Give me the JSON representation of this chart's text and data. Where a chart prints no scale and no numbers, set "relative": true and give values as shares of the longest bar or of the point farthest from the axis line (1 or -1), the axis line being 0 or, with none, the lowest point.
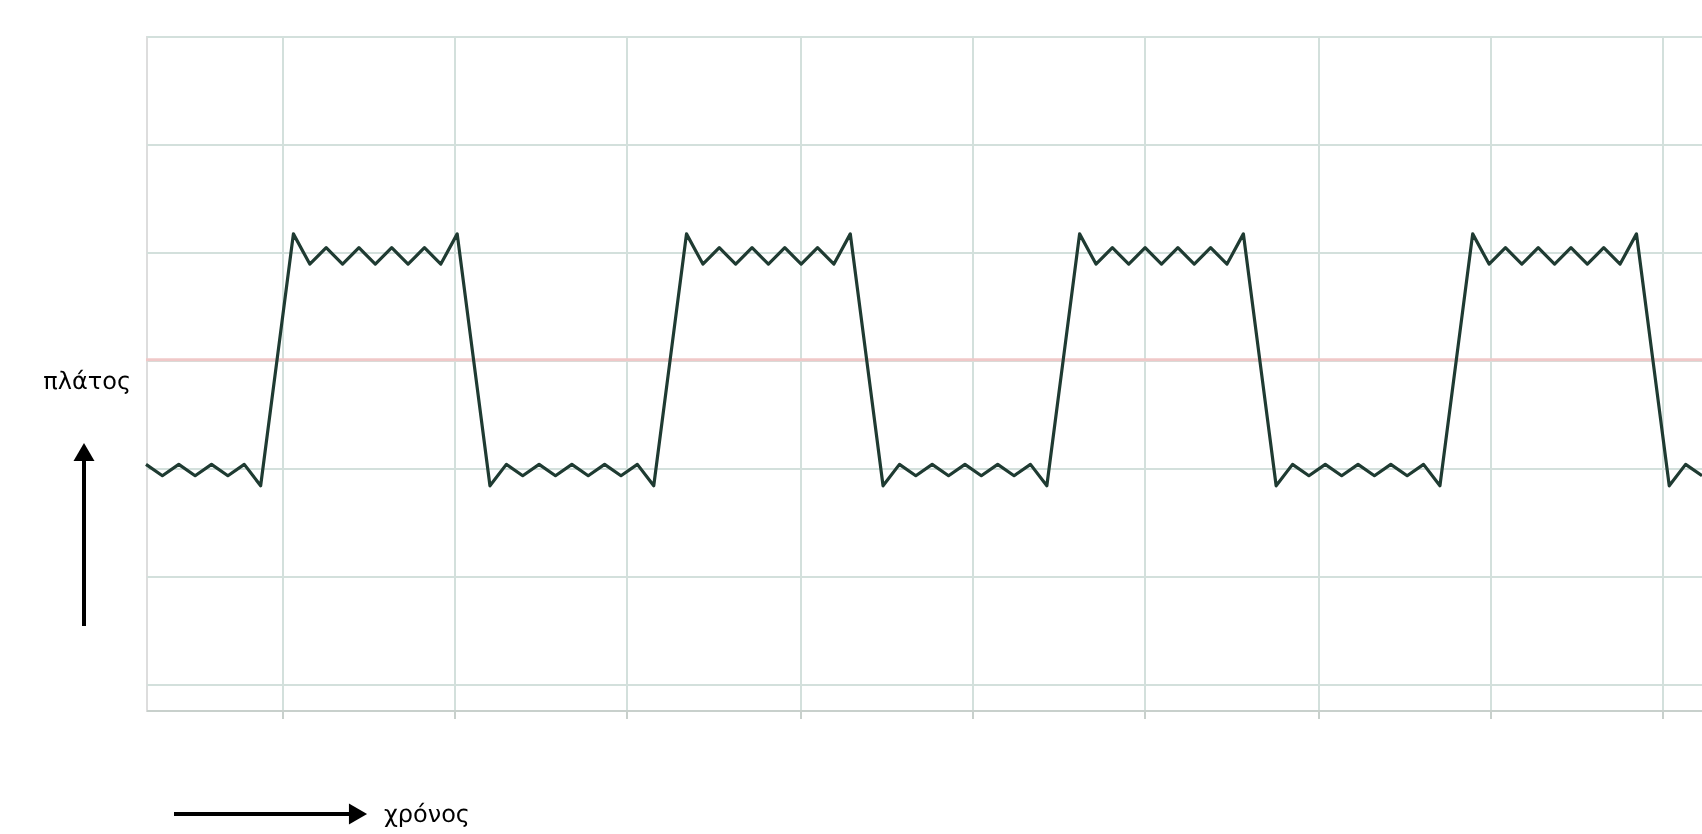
{
  "chart_data": {
    "type": "line",
    "relative": true,
    "annotations": [
      "χρόνος"
    ],
    "ylabel": "πλάτος",
    "categories": [
      null,
      null,
      null,
      null,
      null,
      null,
      null,
      null,
      null,
      null,
      null,
      null,
      null,
      null,
      null,
      null,
      null,
      null,
      null,
      null,
      null,
      null,
      null,
      null,
      null,
      null,
      null,
      null,
      null,
      null,
      null,
      null,
      null,
      null,
      null,
      null,
      null,
      null,
      null,
      null,
      null,
      null,
      null,
      null,
      null,
      null,
      null,
      null,
      null,
      null,
      null,
      null,
      null,
      null,
      null,
      null,
      null,
      null,
      null,
      null,
      null,
      null,
      null,
      null,
      null,
      null,
      null,
      null,
      null,
      null,
      null,
      null,
      null,
      null,
      null,
      null,
      null,
      null,
      null,
      null,
      null,
      null,
      null,
      null,
      null,
      null,
      null,
      null,
      null,
      null,
      null,
      null,
      null,
      null,
      null,
      null
    ],
    "series": [
      {
        "color": "#1f3b32",
        "values": [
          -0.83,
          -0.92,
          -0.83,
          -0.92,
          -0.83,
          -0.92,
          -0.83,
          -1.0,
          0,
          1.0,
          0.76,
          0.89,
          0.76,
          0.89,
          0.76,
          0.89,
          0.76,
          0.89,
          0.76,
          1.0,
          0,
          -1.0,
          -0.83,
          -0.92,
          -0.83,
          -0.92,
          -0.83,
          -0.92,
          -0.83,
          -0.92,
          -0.83,
          -1.0,
          0,
          1.0,
          0.76,
          0.89,
          0.76,
          0.89,
          0.76,
          0.89,
          0.76,
          0.89,
          0.76,
          1.0,
          0,
          -1.0,
          -0.83,
          -0.92,
          -0.83,
          -0.92,
          -0.83,
          -0.92,
          -0.83,
          -0.92,
          -0.83,
          -1.0,
          0,
          1.0,
          0.76,
          0.89,
          0.76,
          0.89,
          0.76,
          0.89,
          0.76,
          0.89,
          0.76,
          1.0,
          0,
          -1.0,
          -0.83,
          -0.92,
          -0.83,
          -0.92,
          -0.83,
          -0.92,
          -0.83,
          -0.92,
          -0.83,
          -1.0,
          0,
          1.0,
          0.76,
          0.89,
          0.76,
          0.89,
          0.76,
          0.89,
          0.76,
          0.89,
          0.76,
          1.0,
          0,
          -1.0,
          -0.83,
          -0.92
        ]
      }
    ],
    "grid": true,
    "marker": "none",
    "line_style": "solid"
  }
}
